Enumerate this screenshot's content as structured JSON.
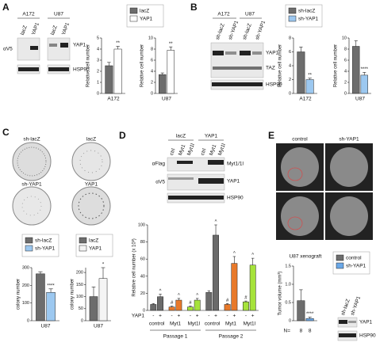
{
  "panel_labels": [
    "A",
    "B",
    "C",
    "D",
    "E"
  ],
  "blots": [
    {
      "headers": [
        "A172",
        "U87"
      ],
      "lanes": [
        "lacZ",
        "YAP1",
        "lacZ",
        "YAP1"
      ],
      "left_labels": [
        "αV5"
      ],
      "right_labels": [
        "YAP1",
        "HSP90"
      ]
    },
    {
      "headers": [
        "A172",
        "U87"
      ],
      "lanes": [
        "sh-lacZ",
        "sh-YAP1",
        "sh-lacZ",
        "sh-YAP1"
      ],
      "right_labels": [
        "YAP1",
        "TAZ",
        "HSP90"
      ]
    },
    {
      "headers": [
        "lacZ",
        "YAP1"
      ],
      "lanes": [
        "ctrl",
        "Myt1",
        "Myt1l",
        "ctrl",
        "Myt1",
        "Myt1l"
      ],
      "left_labels": [
        "αFlag",
        "αV5"
      ],
      "right_labels": [
        "Myt1/1l",
        "YAP1",
        "HSP90"
      ]
    },
    {
      "lanes": [
        "sh-lacZ",
        "sh-YAP1"
      ],
      "right_labels": [
        "YAP1",
        "HSP90"
      ]
    }
  ],
  "images": {
    "plates": [
      "sh-lacZ",
      "lacZ",
      "sh-YAP1",
      "YAP1"
    ],
    "mri": [
      "control",
      "sh-YAP1"
    ]
  },
  "chart_data": [
    {
      "type": "bar",
      "categories": [
        "A172"
      ],
      "series": [
        {
          "name": "lacZ",
          "color": "#6d6d6d",
          "values": [
            2.5
          ],
          "errors": [
            0.3
          ]
        },
        {
          "name": "YAP1",
          "color": "#ffffff",
          "values": [
            4.0
          ],
          "errors": [
            0.25
          ],
          "marks": [
            "**"
          ]
        }
      ],
      "ylim": [
        0,
        5
      ],
      "yticks": [
        0,
        1,
        2,
        3,
        4,
        5
      ],
      "ylabel": "Relative cell number",
      "legend": true
    },
    {
      "type": "bar",
      "categories": [
        "U87"
      ],
      "series": [
        {
          "name": "lacZ",
          "color": "#6d6d6d",
          "values": [
            3.4
          ],
          "errors": [
            0.3
          ]
        },
        {
          "name": "YAP1",
          "color": "#ffffff",
          "values": [
            7.8
          ],
          "errors": [
            0.6
          ],
          "marks": [
            "**"
          ]
        }
      ],
      "ylim": [
        0,
        10
      ],
      "yticks": [
        0,
        2,
        4,
        6,
        8,
        10
      ],
      "ylabel": "Relative cell number",
      "legend": false
    },
    {
      "type": "bar",
      "categories": [
        "A172"
      ],
      "series": [
        {
          "name": "sh-lacZ",
          "color": "#6d6d6d",
          "values": [
            6.0
          ],
          "errors": [
            0.7
          ]
        },
        {
          "name": "sh-YAP1",
          "color": "#9cc8f0",
          "values": [
            2.0
          ],
          "errors": [
            0.2
          ],
          "marks": [
            "**"
          ]
        }
      ],
      "ylim": [
        0,
        8
      ],
      "yticks": [
        0,
        2,
        4,
        6,
        8
      ],
      "ylabel": "Relative cell number",
      "legend": true
    },
    {
      "type": "bar",
      "categories": [
        "U87"
      ],
      "series": [
        {
          "name": "sh-lacZ",
          "color": "#6d6d6d",
          "values": [
            8.5
          ],
          "errors": [
            1.0
          ]
        },
        {
          "name": "sh-YAP1",
          "color": "#9cc8f0",
          "values": [
            3.3
          ],
          "errors": [
            0.5
          ],
          "marks": [
            "****"
          ]
        }
      ],
      "ylim": [
        0,
        10
      ],
      "yticks": [
        0,
        2,
        4,
        6,
        8,
        10
      ],
      "ylabel": "Relative cell number",
      "legend": false
    },
    {
      "type": "bar",
      "categories": [
        "U87"
      ],
      "series": [
        {
          "name": "sh-lacZ",
          "color": "#6d6d6d",
          "values": [
            265
          ],
          "errors": [
            12
          ]
        },
        {
          "name": "sh-YAP1",
          "color": "#9cc8f0",
          "values": [
            160
          ],
          "errors": [
            20
          ],
          "marks": [
            "****"
          ]
        }
      ],
      "ylim": [
        0,
        300
      ],
      "yticks": [
        0,
        100,
        200,
        300
      ],
      "ylabel": "colony number",
      "legend": true
    },
    {
      "type": "bar",
      "categories": [
        "U87"
      ],
      "series": [
        {
          "name": "lacZ",
          "color": "#6d6d6d",
          "values": [
            100
          ],
          "errors": [
            40
          ]
        },
        {
          "name": "YAP1",
          "color": "#f4f4f4",
          "values": [
            175
          ],
          "errors": [
            45
          ],
          "marks": [
            "*"
          ]
        }
      ],
      "ylim": [
        0,
        220
      ],
      "yticks": [
        0,
        50,
        100,
        150,
        200
      ],
      "ylabel": "colony number",
      "legend": true
    },
    {
      "type": "bar",
      "categories": [
        "control",
        "Myt1",
        "Myt1l",
        "control",
        "Myt1",
        "Myt1l"
      ],
      "category_colors": [
        "#6b6b6b",
        "#e8792a",
        "#a6e33b",
        "#6b6b6b",
        "#e8792a",
        "#a6e33b"
      ],
      "series": [
        {
          "name": "-",
          "values": [
            7,
            4,
            4,
            21,
            7,
            10
          ],
          "errors": [
            1,
            1,
            1,
            2,
            1,
            1
          ],
          "marks": [
            null,
            "#",
            "#",
            null,
            "#",
            "#"
          ]
        },
        {
          "name": "+",
          "values": [
            16,
            12,
            12,
            88,
            55,
            53
          ],
          "errors": [
            3,
            2,
            2,
            12,
            8,
            8
          ],
          "marks": [
            "^",
            "^",
            "^",
            "^",
            "^",
            "^"
          ]
        }
      ],
      "row_label": "YAP1",
      "groups": [
        "Passage 1",
        "Passage 2"
      ],
      "ylim": [
        0,
        100
      ],
      "yticks": [
        0,
        20,
        40,
        60,
        80,
        100
      ],
      "ylabel": "Relative cell number (x 10³)",
      "legend": false
    },
    {
      "type": "bar",
      "title": "U87 xenograft",
      "categories": [
        null
      ],
      "series": [
        {
          "name": "control",
          "color": "#6d6d6d",
          "values": [
            0.55
          ],
          "errors": [
            0.3
          ]
        },
        {
          "name": "sh-YAP1",
          "color": "#6aa8e8",
          "values": [
            0.06
          ],
          "errors": [
            0.04
          ],
          "marks": [
            "****"
          ]
        }
      ],
      "ylim": [
        0,
        1.5
      ],
      "yticks": [
        0,
        0.5,
        {
          "value": 1,
          "label": "1.0"
        },
        1.5
      ],
      "ylabel": "Tumor volume (mm³)",
      "legend": true,
      "n_label": "N=",
      "n": [
        8,
        8
      ]
    }
  ]
}
